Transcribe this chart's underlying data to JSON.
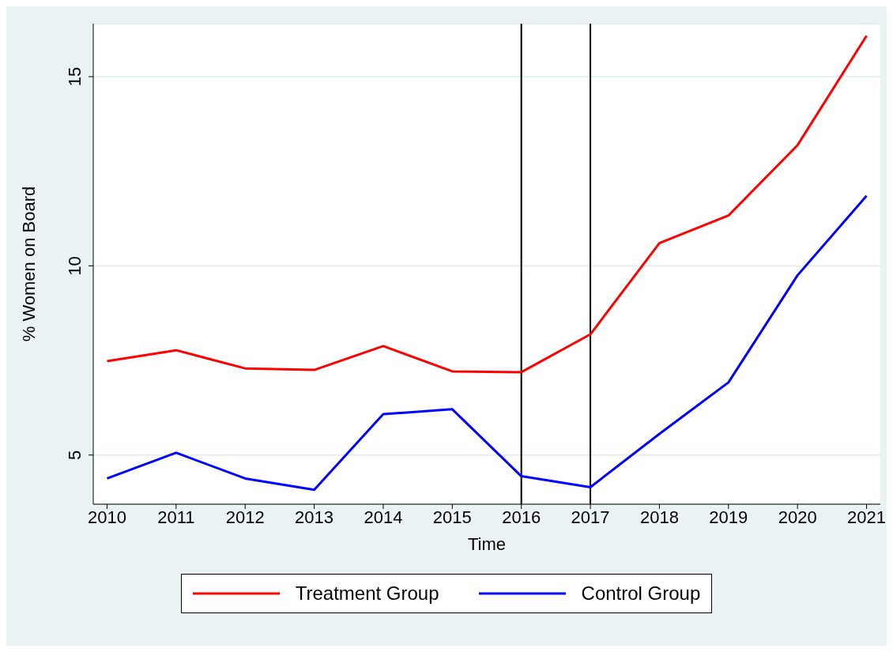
{
  "chart_data": {
    "type": "line",
    "xlabel": "Time",
    "ylabel": "% Women on Board",
    "x": [
      2010,
      2011,
      2012,
      2013,
      2014,
      2015,
      2016,
      2017,
      2018,
      2019,
      2020,
      2021
    ],
    "series": [
      {
        "name": "Treatment Group",
        "color": "#ff0000",
        "values": [
          7.48,
          7.77,
          7.29,
          7.25,
          7.88,
          7.21,
          7.19,
          8.19,
          10.6,
          11.33,
          13.19,
          16.08
        ]
      },
      {
        "name": "Control Group",
        "color": "#0000ff",
        "values": [
          4.38,
          5.06,
          4.38,
          4.08,
          6.08,
          6.21,
          4.44,
          4.15,
          5.56,
          6.92,
          9.75,
          11.85
        ]
      }
    ],
    "xlim": [
      2009.8,
      2021.2
    ],
    "xticks": [
      2010,
      2011,
      2012,
      2013,
      2014,
      2015,
      2016,
      2017,
      2018,
      2019,
      2020,
      2021
    ],
    "ylim": [
      3.7,
      16.4
    ],
    "yticks": [
      5,
      10,
      15
    ],
    "grid": "y",
    "legend": "bottom",
    "marker": "none",
    "line_style": "solid",
    "ref_lines": [
      {
        "axis": "x",
        "value": 2016,
        "color": "#000000"
      },
      {
        "axis": "x",
        "value": 2017,
        "color": "#000000"
      }
    ]
  }
}
